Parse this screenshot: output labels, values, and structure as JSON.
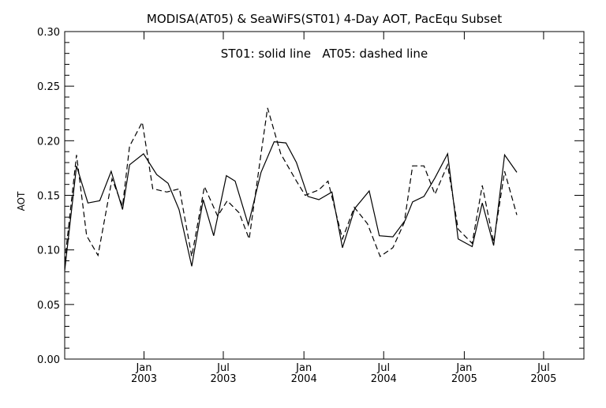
{
  "chart_data": {
    "type": "line",
    "title": "MODISA(AT05) & SeaWiFS(ST01) 4-Day AOT, PacEqu Subset",
    "annotation": "ST01: solid line   AT05: dashed line",
    "xlabel": "",
    "ylabel": "AOT",
    "ylim": [
      0.0,
      0.3
    ],
    "xlim": [
      "2002-07-04",
      "2005-10-01"
    ],
    "grid": false,
    "y_ticks": [
      "0.00",
      "0.05",
      "0.10",
      "0.15",
      "0.20",
      "0.25",
      "0.30"
    ],
    "x_ticks": [
      {
        "month": "Jan",
        "year": "2003",
        "date": "2003-01-01"
      },
      {
        "month": "Jul",
        "year": "2003",
        "date": "2003-07-01"
      },
      {
        "month": "Jan",
        "year": "2004",
        "date": "2004-01-01"
      },
      {
        "month": "Jul",
        "year": "2004",
        "date": "2004-07-01"
      },
      {
        "month": "Jan",
        "year": "2005",
        "date": "2005-01-01"
      },
      {
        "month": "Jul",
        "year": "2005",
        "date": "2005-07-01"
      }
    ],
    "series": [
      {
        "name": "ST01",
        "line_style": "solid",
        "color": "#000000",
        "points": [
          [
            "2002-07-04",
            0.081
          ],
          [
            "2002-07-31",
            0.177
          ],
          [
            "2002-08-26",
            0.143
          ],
          [
            "2002-09-22",
            0.145
          ],
          [
            "2002-10-18",
            0.172
          ],
          [
            "2002-11-13",
            0.137
          ],
          [
            "2002-11-29",
            0.178
          ],
          [
            "2002-12-31",
            0.188
          ],
          [
            "2003-01-30",
            0.169
          ],
          [
            "2003-02-25",
            0.161
          ],
          [
            "2003-03-22",
            0.137
          ],
          [
            "2003-04-20",
            0.085
          ],
          [
            "2003-05-16",
            0.146
          ],
          [
            "2003-06-09",
            0.113
          ],
          [
            "2003-07-08",
            0.168
          ],
          [
            "2003-07-28",
            0.163
          ],
          [
            "2003-08-27",
            0.123
          ],
          [
            "2003-09-25",
            0.171
          ],
          [
            "2003-10-25",
            0.199
          ],
          [
            "2003-11-21",
            0.198
          ],
          [
            "2003-12-15",
            0.18
          ],
          [
            "2004-01-10",
            0.149
          ],
          [
            "2004-02-04",
            0.146
          ],
          [
            "2004-03-05",
            0.153
          ],
          [
            "2004-03-29",
            0.102
          ],
          [
            "2004-04-26",
            0.138
          ],
          [
            "2004-05-29",
            0.154
          ],
          [
            "2004-06-21",
            0.113
          ],
          [
            "2004-07-22",
            0.112
          ],
          [
            "2004-08-19",
            0.127
          ],
          [
            "2004-09-05",
            0.144
          ],
          [
            "2004-10-01",
            0.149
          ],
          [
            "2004-10-26",
            0.166
          ],
          [
            "2004-11-24",
            0.188
          ],
          [
            "2004-12-18",
            0.11
          ],
          [
            "2005-01-19",
            0.103
          ],
          [
            "2005-02-11",
            0.143
          ],
          [
            "2005-03-09",
            0.104
          ],
          [
            "2005-04-03",
            0.187
          ],
          [
            "2005-05-01",
            0.171
          ]
        ]
      },
      {
        "name": "AT05",
        "line_style": "dashed",
        "color": "#000000",
        "points": [
          [
            "2002-07-04",
            0.089
          ],
          [
            "2002-07-31",
            0.187
          ],
          [
            "2002-08-23",
            0.113
          ],
          [
            "2002-09-18",
            0.095
          ],
          [
            "2002-10-20",
            0.165
          ],
          [
            "2002-11-13",
            0.14
          ],
          [
            "2002-11-29",
            0.195
          ],
          [
            "2002-12-28",
            0.217
          ],
          [
            "2003-01-21",
            0.156
          ],
          [
            "2003-02-22",
            0.153
          ],
          [
            "2003-03-23",
            0.156
          ],
          [
            "2003-04-20",
            0.094
          ],
          [
            "2003-05-19",
            0.158
          ],
          [
            "2003-06-18",
            0.131
          ],
          [
            "2003-07-10",
            0.145
          ],
          [
            "2003-08-06",
            0.134
          ],
          [
            "2003-08-29",
            0.11
          ],
          [
            "2003-09-25",
            0.188
          ],
          [
            "2003-10-10",
            0.23
          ],
          [
            "2003-11-09",
            0.188
          ],
          [
            "2003-12-15",
            0.163
          ],
          [
            "2004-01-04",
            0.15
          ],
          [
            "2004-02-04",
            0.155
          ],
          [
            "2004-02-25",
            0.163
          ],
          [
            "2004-03-29",
            0.11
          ],
          [
            "2004-04-25",
            0.139
          ],
          [
            "2004-05-25",
            0.124
          ],
          [
            "2004-06-23",
            0.094
          ],
          [
            "2004-07-22",
            0.102
          ],
          [
            "2004-08-17",
            0.125
          ],
          [
            "2004-09-05",
            0.177
          ],
          [
            "2004-10-01",
            0.177
          ],
          [
            "2004-10-26",
            0.151
          ],
          [
            "2004-11-24",
            0.178
          ],
          [
            "2004-12-18",
            0.119
          ],
          [
            "2005-01-19",
            0.106
          ],
          [
            "2005-02-11",
            0.159
          ],
          [
            "2005-03-09",
            0.107
          ],
          [
            "2005-04-03",
            0.172
          ],
          [
            "2005-05-01",
            0.132
          ]
        ]
      }
    ]
  }
}
